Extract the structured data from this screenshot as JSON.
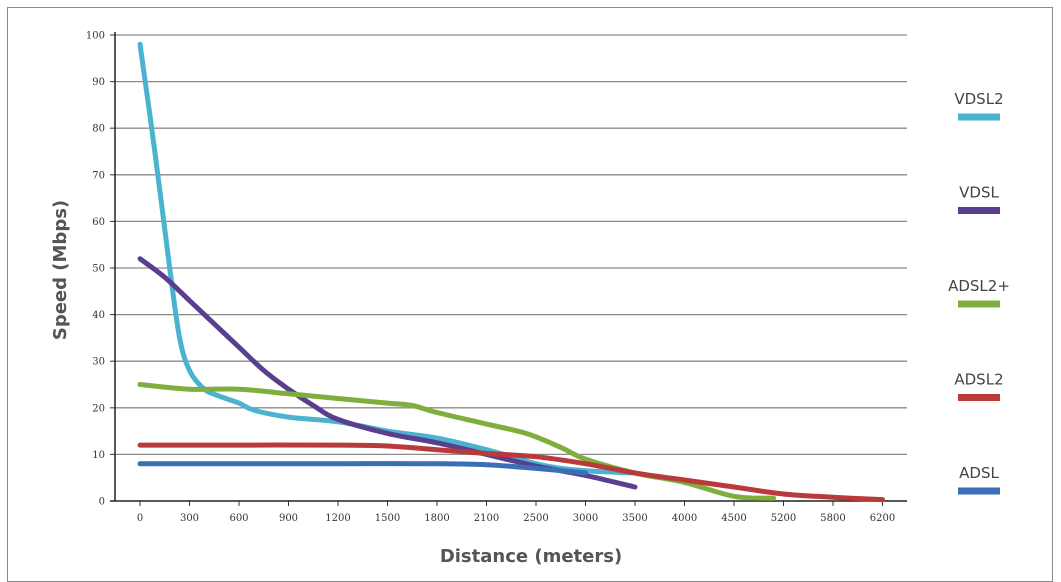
{
  "chart_data": {
    "type": "line",
    "title": "",
    "xlabel": "Distance (meters)",
    "ylabel": "Speed (Mbps)",
    "x": [
      "0",
      "300",
      "600",
      "900",
      "1200",
      "1500",
      "1800",
      "2100",
      "2500",
      "3000",
      "3500",
      "4000",
      "4500",
      "5200",
      "5800",
      "6200"
    ],
    "yticks": [
      0,
      10,
      20,
      30,
      40,
      50,
      60,
      70,
      80,
      90,
      100
    ],
    "ylim": [
      0,
      100
    ],
    "grid": true,
    "legend_position": "right",
    "series": [
      {
        "name": "VDSL2",
        "color": "#4ab3cf",
        "points": [
          [
            0,
            98
          ],
          [
            0.3,
            75
          ],
          [
            0.6,
            50
          ],
          [
            0.8,
            35
          ],
          [
            1,
            28
          ],
          [
            1.3,
            24
          ],
          [
            1.6,
            22.5
          ],
          [
            2,
            21
          ],
          [
            2.3,
            19.5
          ],
          [
            3,
            18
          ],
          [
            4,
            17
          ],
          [
            5,
            15
          ],
          [
            6,
            13.5
          ],
          [
            7,
            11
          ],
          [
            8,
            8
          ],
          [
            8.5,
            7
          ],
          [
            9,
            6.5
          ],
          [
            10,
            6
          ]
        ]
      },
      {
        "name": "VDSL",
        "color": "#5b3f8f",
        "points": [
          [
            0,
            52
          ],
          [
            0.5,
            48
          ],
          [
            1,
            43
          ],
          [
            1.5,
            38
          ],
          [
            2,
            33
          ],
          [
            2.5,
            28
          ],
          [
            3,
            24
          ],
          [
            3.5,
            20.5
          ],
          [
            4,
            17.5
          ],
          [
            5,
            14.5
          ],
          [
            6,
            12.5
          ],
          [
            7,
            10
          ],
          [
            8,
            7.5
          ],
          [
            9,
            5.5
          ],
          [
            10,
            3
          ]
        ]
      },
      {
        "name": "ADSL2+",
        "color": "#7fae3c",
        "points": [
          [
            0,
            25
          ],
          [
            1,
            24
          ],
          [
            2,
            24
          ],
          [
            3,
            23
          ],
          [
            4,
            22
          ],
          [
            5,
            21
          ],
          [
            5.5,
            20.5
          ],
          [
            6,
            19
          ],
          [
            7,
            16.5
          ],
          [
            7.8,
            14.5
          ],
          [
            8.5,
            11.5
          ],
          [
            9,
            9
          ],
          [
            10,
            6
          ],
          [
            11,
            4
          ],
          [
            12,
            1
          ],
          [
            12.8,
            0.6
          ]
        ]
      },
      {
        "name": "ADSL2",
        "color": "#b83a3a",
        "points": [
          [
            0,
            12
          ],
          [
            2,
            12
          ],
          [
            4,
            12
          ],
          [
            5,
            11.8
          ],
          [
            6,
            11
          ],
          [
            7,
            10.2
          ],
          [
            8,
            9.5
          ],
          [
            9,
            8
          ],
          [
            10,
            6
          ],
          [
            11,
            4.5
          ],
          [
            12,
            3
          ],
          [
            13,
            1.5
          ],
          [
            14,
            0.8
          ],
          [
            15,
            0.3
          ]
        ]
      },
      {
        "name": "ADSL",
        "color": "#3a6fb5",
        "points": [
          [
            0,
            8
          ],
          [
            2,
            8
          ],
          [
            4,
            8
          ],
          [
            6,
            8
          ],
          [
            7,
            7.8
          ],
          [
            8,
            7
          ],
          [
            9,
            6
          ]
        ]
      }
    ]
  }
}
